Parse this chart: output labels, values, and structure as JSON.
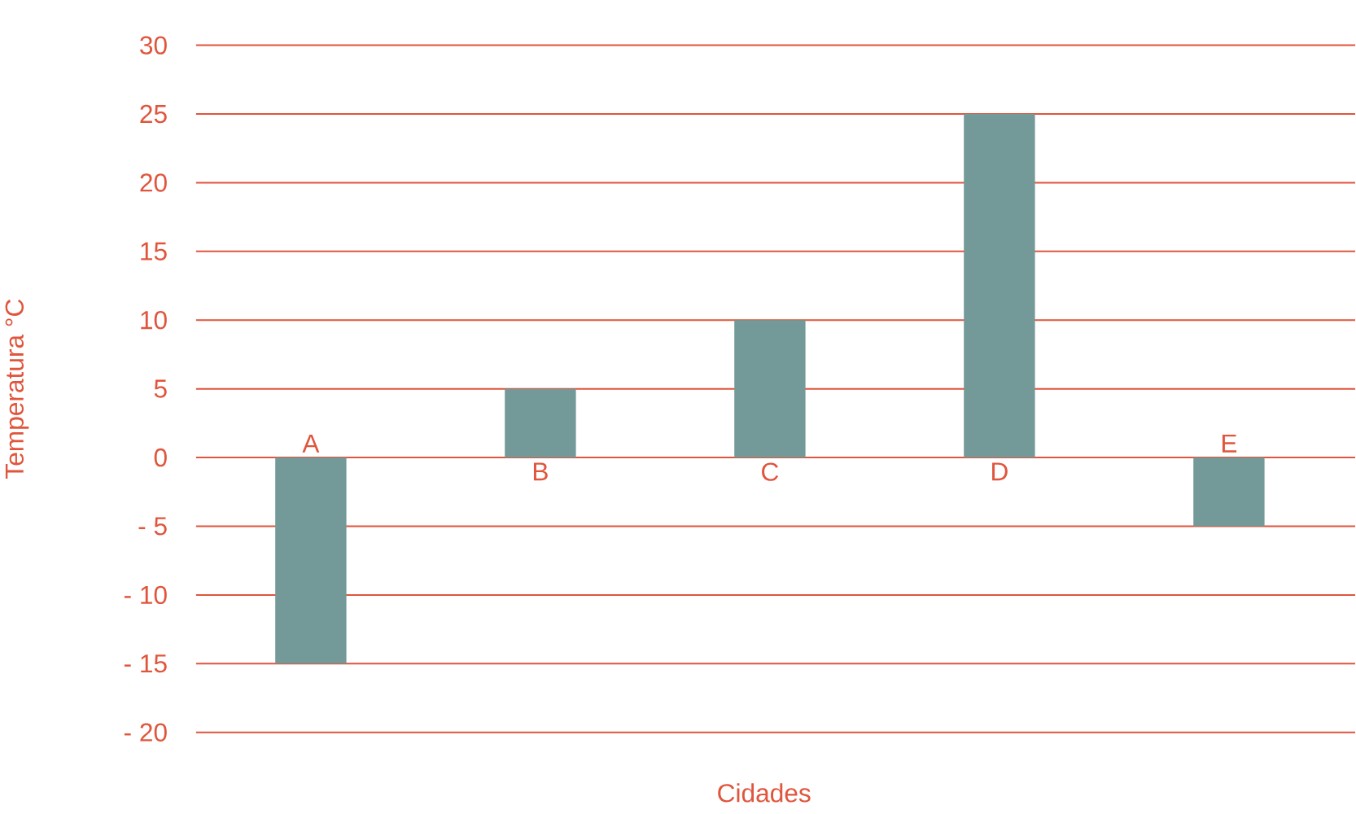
{
  "chart_data": {
    "type": "bar",
    "xlabel": "Cidades",
    "ylabel": "Temperatura °C",
    "categories": [
      "A",
      "B",
      "C",
      "D",
      "E"
    ],
    "values": [
      -15,
      5,
      10,
      25,
      -5
    ],
    "color": "#739a98",
    "ylim": [
      -20,
      30
    ],
    "yticks": [
      {
        "value": -20,
        "label": "- 20"
      },
      {
        "value": -15,
        "label": "- 15"
      },
      {
        "value": -10,
        "label": "- 10"
      },
      {
        "value": -5,
        "label": "- 5"
      },
      0,
      5,
      10,
      15,
      20,
      25,
      30
    ],
    "grid": "y"
  }
}
